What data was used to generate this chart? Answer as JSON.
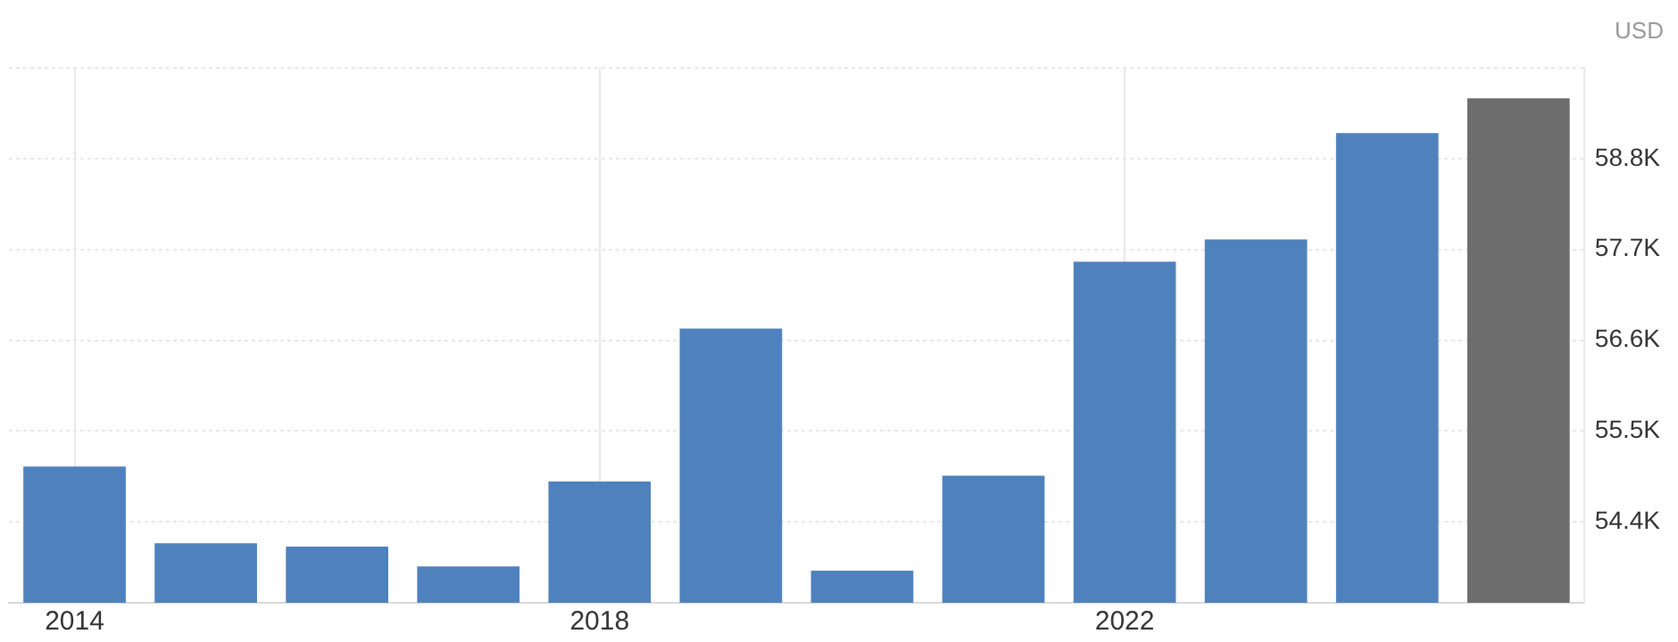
{
  "chart_data": {
    "type": "bar",
    "ylabel": "USD",
    "categories": [
      "2014",
      null,
      null,
      null,
      "2018",
      null,
      null,
      null,
      "2022",
      null,
      null,
      null
    ],
    "values": [
      55.07,
      54.14,
      54.1,
      53.86,
      54.89,
      56.74,
      53.81,
      54.96,
      57.55,
      57.82,
      59.11,
      59.53
    ],
    "colors": [
      "#4f81bd",
      "#4f81bd",
      "#4f81bd",
      "#4f81bd",
      "#4f81bd",
      "#4f81bd",
      "#4f81bd",
      "#4f81bd",
      "#4f81bd",
      "#4f81bd",
      "#4f81bd",
      "#6d6d6d"
    ],
    "ylim": [
      53.42,
      59.9
    ],
    "yticks": [
      {
        "value": 54.4,
        "label": "54.4K"
      },
      {
        "value": 55.5,
        "label": "55.5K"
      },
      {
        "value": 56.6,
        "label": "56.6K"
      },
      {
        "value": 57.7,
        "label": "57.7K"
      },
      {
        "value": 58.8,
        "label": "58.8K"
      },
      {
        "value": 59.9,
        "label": null
      }
    ],
    "grid": true,
    "legend": false
  }
}
